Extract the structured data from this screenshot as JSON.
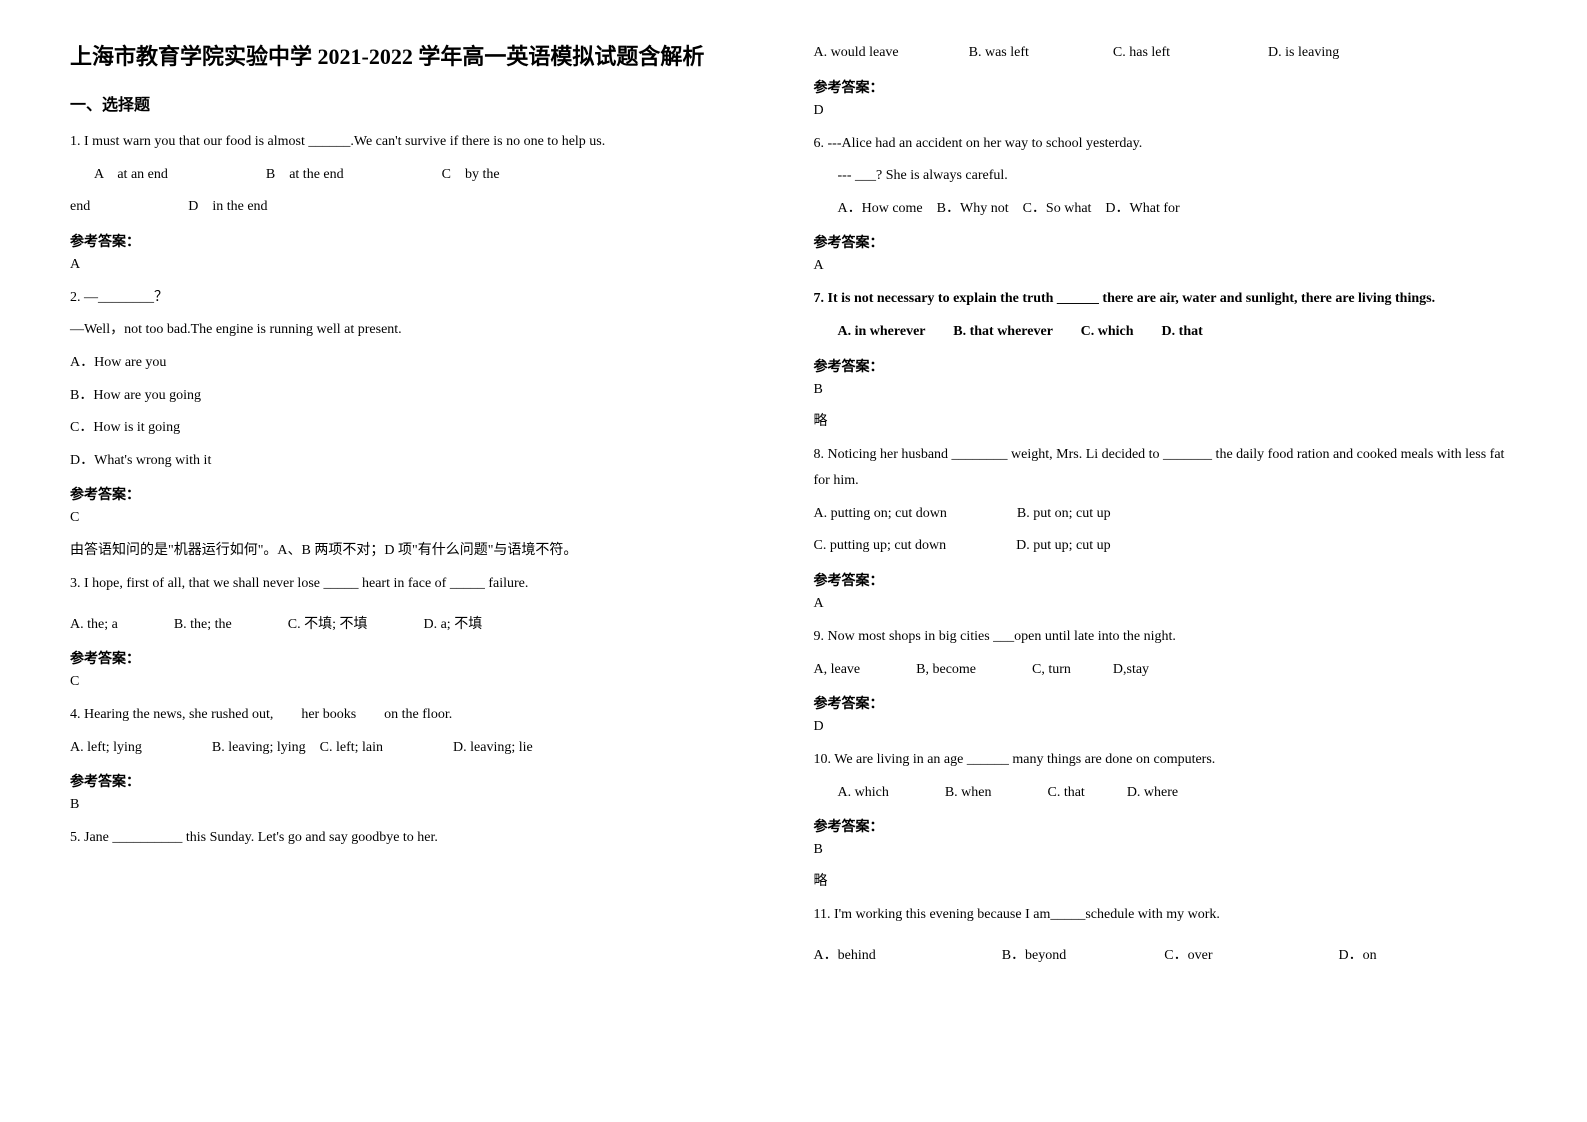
{
  "title": "上海市教育学院实验中学 2021-2022 学年高一英语模拟试题含解析",
  "section1": "一、选择题",
  "ans_label": "参考答案：",
  "omit": "略",
  "q1": {
    "stem": "1. I must warn you that our food is almost ______.We can't survive if there is no one to help us.",
    "opts_line1": "A　at an end　　　　　　　B　at the end　　　　　　　C　by the",
    "opts_line2": "end　　　　　　　D　in the end",
    "answer": "A"
  },
  "q2": {
    "stem1": "2. —________？",
    "stem2": "—Well，not too bad.The engine is running well at present.",
    "optA": "A．How are you",
    "optB": "B．How are you going",
    "optC": "C．How is it going",
    "optD": "D．What's wrong with it",
    "answer": "C",
    "explain": "由答语知问的是\"机器运行如何\"。A、B 两项不对；D 项\"有什么问题\"与语境不符。"
  },
  "q3": {
    "stem": "3. I hope, first of all, that we shall never lose _____ heart in face of _____ failure.",
    "opts": "A. the; a　　　　B. the; the　　　　C. 不填; 不填　　　　D. a; 不填",
    "answer": "C"
  },
  "q4": {
    "stem": "4. Hearing the news, she rushed out,　　her books　　on the floor.",
    "opts": "A. left; lying　　　　　B. leaving; lying　C. left; lain　　　　　D. leaving; lie",
    "answer": "B"
  },
  "q5": {
    "stem": "5. Jane __________ this Sunday. Let's go and say goodbye to her.",
    "opts": "A. would leave　　　　　B. was left　　　　　　C. has left　　　　　　　D. is leaving",
    "answer": "D"
  },
  "q6": {
    "stem1": "6. ---Alice had an accident on her way to school yesterday.",
    "stem2": "--- ___? She is always careful.",
    "opts": "A．How come　B．Why not　C．So what　D．What for",
    "answer": "A"
  },
  "q7": {
    "stem": "7. It is not necessary to explain the truth ______ there are air, water and sunlight, there are living things.",
    "opts": "A. in wherever　　B. that wherever　　C. which　　D. that",
    "answer": "B"
  },
  "q8": {
    "stem1": "8. Noticing her husband ________ weight, Mrs. Li decided to _______ the daily food ration and cooked meals with less fat for him.",
    "optsA": "A. putting on; cut down　　　　　B. put on; cut up",
    "optsB": "C. putting up; cut down　　　　　D. put up; cut up",
    "answer": "A"
  },
  "q9": {
    "stem": "9. Now most shops in big cities ___open  until  late into the night.",
    "opts": "A, leave　　　　B, become　　　　C, turn　　　D,stay",
    "answer": "D"
  },
  "q10": {
    "stem": "10. We are living in an age ______ many things are done on computers.",
    "opts": "A. which　　　　B. when　　　　C. that　　　D. where",
    "answer": "B"
  },
  "q11": {
    "stem": "11. I'm working this evening because I am_____schedule with my work.",
    "opts": "A．behind　　　　　　　　　B．beyond　　　　　　　C．over　　　　　　　　　D．on"
  }
}
